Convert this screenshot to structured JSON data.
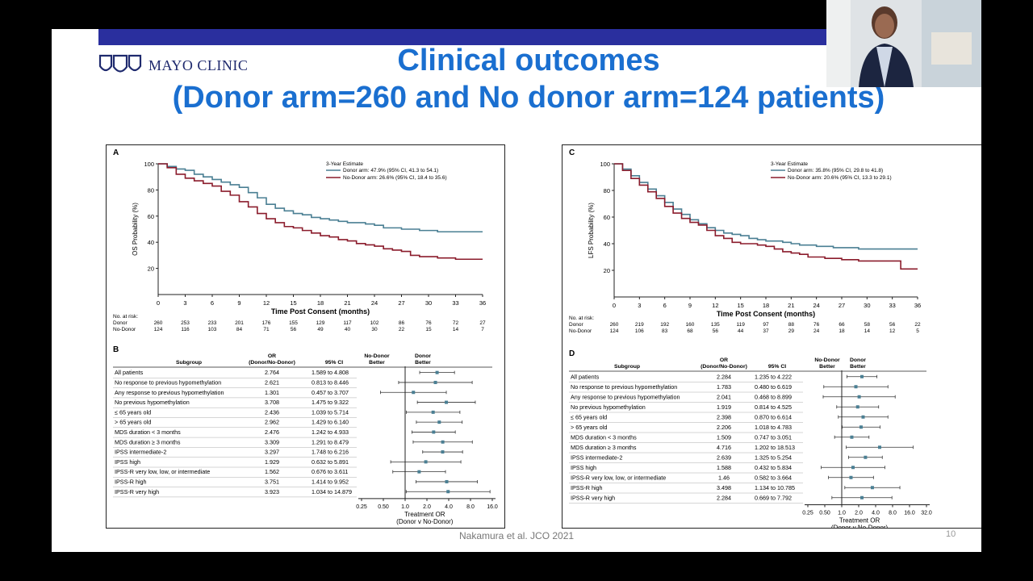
{
  "slide": {
    "logo_text": "MAYO CLINIC",
    "title_line1": "Clinical outcomes",
    "title_line2": "(Donor arm=260 and No donor arm=124 patients)",
    "citation": "Nakamura et al. JCO 2021",
    "page_number": "10"
  },
  "colors": {
    "donor": "#4a7f93",
    "nodonor": "#8b1c2c",
    "title": "#1a6fd0",
    "topbar": "#2a2f9e"
  },
  "chart_data": [
    {
      "id": "A",
      "type": "line",
      "panel_label": "A",
      "ylabel": "OS Probability (%)",
      "xlabel": "Time Post Consent (months)",
      "x_ticks": [
        0,
        3,
        6,
        9,
        12,
        15,
        18,
        21,
        24,
        27,
        30,
        33,
        36
      ],
      "y_ticks": [
        20,
        40,
        60,
        80,
        100
      ],
      "xlim": [
        0,
        36
      ],
      "ylim": [
        0,
        100
      ],
      "legend_title": "3-Year Estimate",
      "series": [
        {
          "name": "Donor arm: 47.9% (95% CI, 41.3 to 54.1)",
          "color": "#4a7f93",
          "x": [
            0,
            1,
            2,
            3,
            4,
            5,
            6,
            7,
            8,
            9,
            10,
            11,
            12,
            13,
            14,
            15,
            16,
            17,
            18,
            19,
            20,
            21,
            22,
            23,
            24,
            25,
            26,
            27,
            28,
            29,
            30,
            31,
            32,
            33,
            34,
            35,
            36
          ],
          "y": [
            100,
            98,
            96,
            95,
            92,
            90,
            88,
            86,
            84,
            82,
            78,
            74,
            69,
            66,
            64,
            62,
            61,
            59,
            58,
            57,
            56,
            55,
            55,
            54,
            53,
            51,
            51,
            50,
            50,
            49,
            49,
            48,
            48,
            48,
            48,
            48,
            48
          ]
        },
        {
          "name": "No-Donor arm: 26.6% (95% CI, 18.4 to 35.6)",
          "color": "#8b1c2c",
          "x": [
            0,
            1,
            2,
            3,
            4,
            5,
            6,
            7,
            8,
            9,
            10,
            11,
            12,
            13,
            14,
            15,
            16,
            17,
            18,
            19,
            20,
            21,
            22,
            23,
            24,
            25,
            26,
            27,
            28,
            29,
            30,
            31,
            32,
            33,
            34,
            35,
            36
          ],
          "y": [
            100,
            97,
            92,
            89,
            87,
            85,
            83,
            79,
            76,
            71,
            67,
            62,
            58,
            55,
            52,
            51,
            49,
            47,
            45,
            44,
            42,
            41,
            39,
            38,
            37,
            35,
            34,
            33,
            30,
            29,
            29,
            28,
            28,
            27,
            27,
            27,
            27
          ]
        }
      ],
      "risk_table": {
        "heading": "No. at risk:",
        "rows": [
          {
            "label": "Donor",
            "values": [
              "260",
              "253",
              "233",
              "201",
              "176",
              "155",
              "129",
              "117",
              "102",
              "86",
              "76",
              "72",
              "27"
            ]
          },
          {
            "label": "No-Donor",
            "values": [
              "124",
              "116",
              "103",
              "84",
              "71",
              "56",
              "49",
              "40",
              "30",
              "22",
              "15",
              "14",
              "7"
            ]
          }
        ]
      }
    },
    {
      "id": "C",
      "type": "line",
      "panel_label": "C",
      "ylabel": "LFS Probability (%)",
      "xlabel": "Time Post Consent (months)",
      "x_ticks": [
        0,
        3,
        6,
        9,
        12,
        15,
        18,
        21,
        24,
        27,
        30,
        33,
        36
      ],
      "y_ticks": [
        20,
        40,
        60,
        80,
        100
      ],
      "xlim": [
        0,
        36
      ],
      "ylim": [
        0,
        100
      ],
      "legend_title": "3-Year Estimate",
      "series": [
        {
          "name": "Donor arm: 35.8% (95% CI, 29.8 to 41.8)",
          "color": "#4a7f93",
          "x": [
            0,
            1,
            2,
            3,
            4,
            5,
            6,
            7,
            8,
            9,
            10,
            11,
            12,
            13,
            14,
            15,
            16,
            17,
            18,
            19,
            20,
            21,
            22,
            23,
            24,
            25,
            26,
            27,
            28,
            29,
            30,
            31,
            32,
            33,
            34,
            35,
            36
          ],
          "y": [
            100,
            96,
            91,
            86,
            81,
            76,
            71,
            66,
            62,
            58,
            55,
            52,
            50,
            48,
            47,
            46,
            44,
            43,
            42,
            42,
            41,
            40,
            39,
            39,
            38,
            38,
            37,
            37,
            37,
            36,
            36,
            36,
            36,
            36,
            36,
            36,
            36
          ]
        },
        {
          "name": "No-Donor arm: 20.6% (95% CI, 13.3 to 29.1)",
          "color": "#8b1c2c",
          "x": [
            0,
            1,
            2,
            3,
            4,
            5,
            6,
            7,
            8,
            9,
            10,
            11,
            12,
            13,
            14,
            15,
            16,
            17,
            18,
            19,
            20,
            21,
            22,
            23,
            24,
            25,
            26,
            27,
            28,
            29,
            30,
            31,
            32,
            33,
            34,
            35,
            36
          ],
          "y": [
            100,
            95,
            89,
            84,
            79,
            74,
            68,
            63,
            59,
            56,
            54,
            50,
            46,
            44,
            41,
            40,
            40,
            39,
            38,
            36,
            34,
            33,
            32,
            30,
            30,
            29,
            29,
            28,
            28,
            27,
            27,
            27,
            27,
            27,
            21,
            21,
            21
          ]
        }
      ],
      "risk_table": {
        "heading": "No. at risk:",
        "rows": [
          {
            "label": "Donor",
            "values": [
              "260",
              "219",
              "192",
              "160",
              "135",
              "119",
              "97",
              "88",
              "76",
              "66",
              "58",
              "56",
              "22"
            ]
          },
          {
            "label": "No-Donor",
            "values": [
              "124",
              "106",
              "83",
              "68",
              "56",
              "44",
              "37",
              "29",
              "24",
              "18",
              "14",
              "12",
              "5"
            ]
          }
        ]
      }
    },
    {
      "id": "B",
      "type": "table",
      "panel_label": "B",
      "headers": {
        "subgroup": "Subgroup",
        "or_l1": "OR",
        "or_l2": "(Donor/No-Donor)",
        "ci": "95% CI",
        "nodonor_l1": "No-Donor",
        "nodonor_l2": "Better",
        "donor_l1": "Donor",
        "donor_l2": "Better"
      },
      "x_ticks": [
        "0.25",
        "0.50",
        "1.0",
        "2.0",
        "4.0",
        "8.0",
        "16.0"
      ],
      "x_tick_values": [
        0.25,
        0.5,
        1,
        2,
        4,
        8,
        16
      ],
      "xlim": [
        0.25,
        16
      ],
      "xlabel_l1": "Treatment OR",
      "xlabel_l2": "(Donor v No-Donor)",
      "rows": [
        {
          "label": "All patients",
          "or": "2.764",
          "ci": "1.589 to 4.808",
          "or_val": 2.764,
          "lo": 1.589,
          "hi": 4.808
        },
        {
          "label": "No response to previous hypomethylation",
          "or": "2.621",
          "ci": "0.813 to 8.446",
          "or_val": 2.621,
          "lo": 0.813,
          "hi": 8.446
        },
        {
          "label": "Any response to previous hypomethylation",
          "or": "1.301",
          "ci": "0.457 to 3.707",
          "or_val": 1.301,
          "lo": 0.457,
          "hi": 3.707
        },
        {
          "label": "No previous hypomethylation",
          "or": "3.708",
          "ci": "1.475 to 9.322",
          "or_val": 3.708,
          "lo": 1.475,
          "hi": 9.322
        },
        {
          "label": "≤ 65 years old",
          "or": "2.436",
          "ci": "1.039 to 5.714",
          "or_val": 2.436,
          "lo": 1.039,
          "hi": 5.714
        },
        {
          "label": "> 65 years old",
          "or": "2.962",
          "ci": "1.429 to 6.140",
          "or_val": 2.962,
          "lo": 1.429,
          "hi": 6.14
        },
        {
          "label": "MDS duration < 3 months",
          "or": "2.476",
          "ci": "1.242 to 4.933",
          "or_val": 2.476,
          "lo": 1.242,
          "hi": 4.933
        },
        {
          "label": "MDS duration ≥ 3 months",
          "or": "3.309",
          "ci": "1.291 to 8.479",
          "or_val": 3.309,
          "lo": 1.291,
          "hi": 8.479
        },
        {
          "label": "IPSS intermediate-2",
          "or": "3.297",
          "ci": "1.748 to 6.216",
          "or_val": 3.297,
          "lo": 1.748,
          "hi": 6.216
        },
        {
          "label": "IPSS high",
          "or": "1.929",
          "ci": "0.632 to 5.891",
          "or_val": 1.929,
          "lo": 0.632,
          "hi": 5.891
        },
        {
          "label": "IPSS-R very low, low, or intermediate",
          "or": "1.562",
          "ci": "0.676 to 3.611",
          "or_val": 1.562,
          "lo": 0.676,
          "hi": 3.611
        },
        {
          "label": "IPSS-R high",
          "or": "3.751",
          "ci": "1.414 to 9.952",
          "or_val": 3.751,
          "lo": 1.414,
          "hi": 9.952
        },
        {
          "label": "IPSS-R very high",
          "or": "3.923",
          "ci": "1.034 to 14.879",
          "or_val": 3.923,
          "lo": 1.034,
          "hi": 14.879
        }
      ]
    },
    {
      "id": "D",
      "type": "table",
      "panel_label": "D",
      "headers": {
        "subgroup": "Subgroup",
        "or_l1": "OR",
        "or_l2": "(Donor/No-Donor)",
        "ci": "95% CI",
        "nodonor_l1": "No-Donor",
        "nodonor_l2": "Better",
        "donor_l1": "Donor",
        "donor_l2": "Better"
      },
      "x_ticks": [
        "0.25",
        "0.50",
        "1.0",
        "2.0",
        "4.0",
        "8.0",
        "16.0",
        "32.0"
      ],
      "x_tick_values": [
        0.25,
        0.5,
        1,
        2,
        4,
        8,
        16,
        32
      ],
      "xlim": [
        0.25,
        32
      ],
      "xlabel_l1": "Treatment OR",
      "xlabel_l2": "(Donor v No-Donor)",
      "rows": [
        {
          "label": "All patients",
          "or": "2.284",
          "ci": "1.235 to 4.222",
          "or_val": 2.284,
          "lo": 1.235,
          "hi": 4.222
        },
        {
          "label": "No response to previous hypomethylation",
          "or": "1.783",
          "ci": "0.480 to 6.619",
          "or_val": 1.783,
          "lo": 0.48,
          "hi": 6.619
        },
        {
          "label": "Any response to previous hypomethylation",
          "or": "2.041",
          "ci": "0.468 to 8.899",
          "or_val": 2.041,
          "lo": 0.468,
          "hi": 8.899
        },
        {
          "label": "No previous hypomethylation",
          "or": "1.919",
          "ci": "0.814 to 4.525",
          "or_val": 1.919,
          "lo": 0.814,
          "hi": 4.525
        },
        {
          "label": "≤ 65 years old",
          "or": "2.398",
          "ci": "0.870 to 6.614",
          "or_val": 2.398,
          "lo": 0.87,
          "hi": 6.614
        },
        {
          "label": "> 65 years old",
          "or": "2.206",
          "ci": "1.018 to 4.783",
          "or_val": 2.206,
          "lo": 1.018,
          "hi": 4.783
        },
        {
          "label": "MDS duration < 3 months",
          "or": "1.509",
          "ci": "0.747 to 3.051",
          "or_val": 1.509,
          "lo": 0.747,
          "hi": 3.051
        },
        {
          "label": "MDS duration ≥ 3 months",
          "or": "4.716",
          "ci": "1.202 to 18.513",
          "or_val": 4.716,
          "lo": 1.202,
          "hi": 18.513
        },
        {
          "label": "IPSS intermediate-2",
          "or": "2.639",
          "ci": "1.325 to 5.254",
          "or_val": 2.639,
          "lo": 1.325,
          "hi": 5.254
        },
        {
          "label": "IPSS high",
          "or": "1.588",
          "ci": "0.432 to 5.834",
          "or_val": 1.588,
          "lo": 0.432,
          "hi": 5.834
        },
        {
          "label": "IPSS-R very low, low, or intermediate",
          "or": "1.46",
          "ci": "0.582 to 3.664",
          "or_val": 1.46,
          "lo": 0.582,
          "hi": 3.664
        },
        {
          "label": "IPSS-R high",
          "or": "3.498",
          "ci": "1.134 to 10.785",
          "or_val": 3.498,
          "lo": 1.134,
          "hi": 10.785
        },
        {
          "label": "IPSS-R very high",
          "or": "2.284",
          "ci": "0.669 to 7.792",
          "or_val": 2.284,
          "lo": 0.669,
          "hi": 7.792
        }
      ]
    }
  ]
}
